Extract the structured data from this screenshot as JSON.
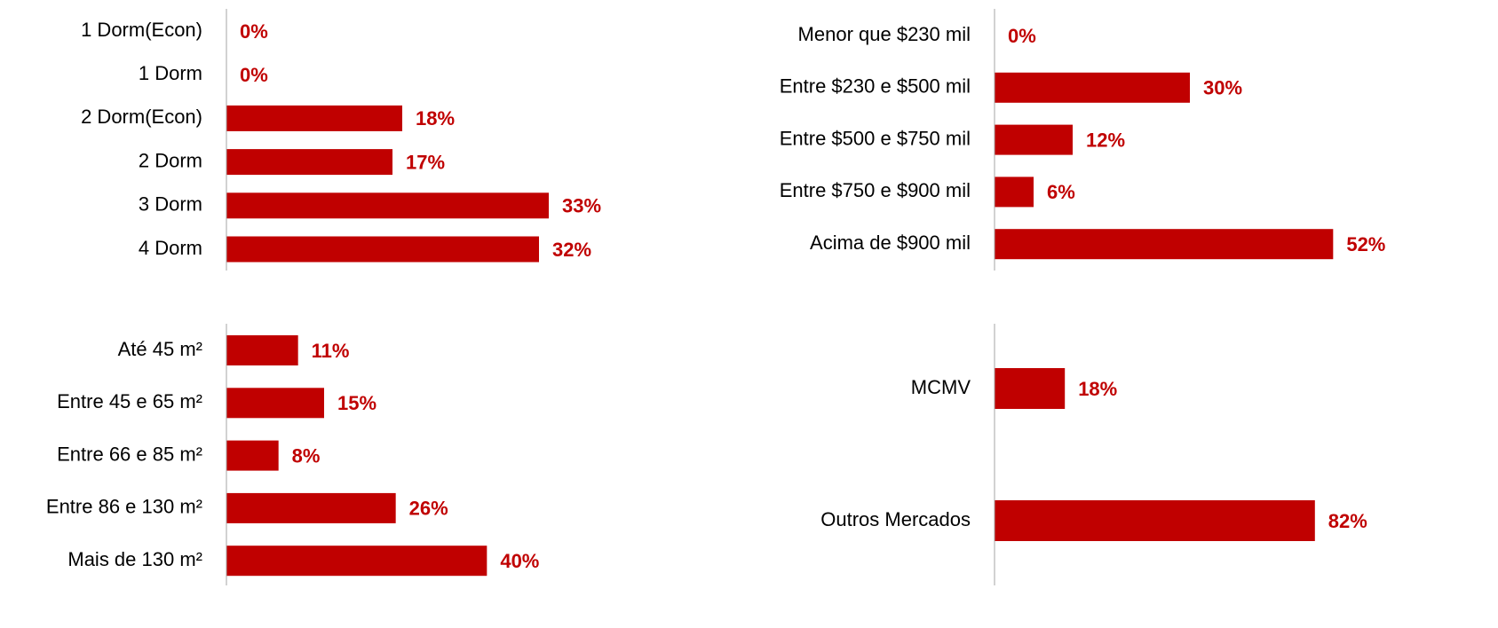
{
  "chart_data": [
    {
      "type": "bar",
      "orientation": "horizontal",
      "color": "#c00000",
      "xlim": [
        0,
        40
      ],
      "categories": [
        "1 Dorm(Econ)",
        "1 Dorm",
        "2 Dorm(Econ)",
        "2 Dorm",
        "3 Dorm",
        "4 Dorm"
      ],
      "values": [
        0,
        0,
        18,
        17,
        33,
        32
      ],
      "value_labels": [
        "0%",
        "0%",
        "18%",
        "17%",
        "33%",
        "32%"
      ]
    },
    {
      "type": "bar",
      "orientation": "horizontal",
      "color": "#c00000",
      "xlim": [
        0,
        60
      ],
      "categories": [
        "Menor que $230 mil",
        "Entre $230 e $500 mil",
        "Entre $500 e $750 mil",
        "Entre $750 e $900 mil",
        "Acima de $900 mil"
      ],
      "values": [
        0,
        30,
        12,
        6,
        52
      ],
      "value_labels": [
        "0%",
        "30%",
        "12%",
        "6%",
        "52%"
      ]
    },
    {
      "type": "bar",
      "orientation": "horizontal",
      "color": "#c00000",
      "xlim": [
        0,
        60
      ],
      "categories": [
        "Até 45 m²",
        "Entre 45 e 65 m²",
        "Entre 66 e 85 m²",
        "Entre 86 e 130 m²",
        "Mais de 130 m²"
      ],
      "values": [
        11,
        15,
        8,
        26,
        40
      ],
      "value_labels": [
        "11%",
        "15%",
        "8%",
        "26%",
        "40%"
      ]
    },
    {
      "type": "bar",
      "orientation": "horizontal",
      "color": "#c00000",
      "xlim": [
        0,
        100
      ],
      "categories": [
        "MCMV",
        "Outros Mercados"
      ],
      "values": [
        18,
        82
      ],
      "value_labels": [
        "18%",
        "82%"
      ]
    }
  ]
}
